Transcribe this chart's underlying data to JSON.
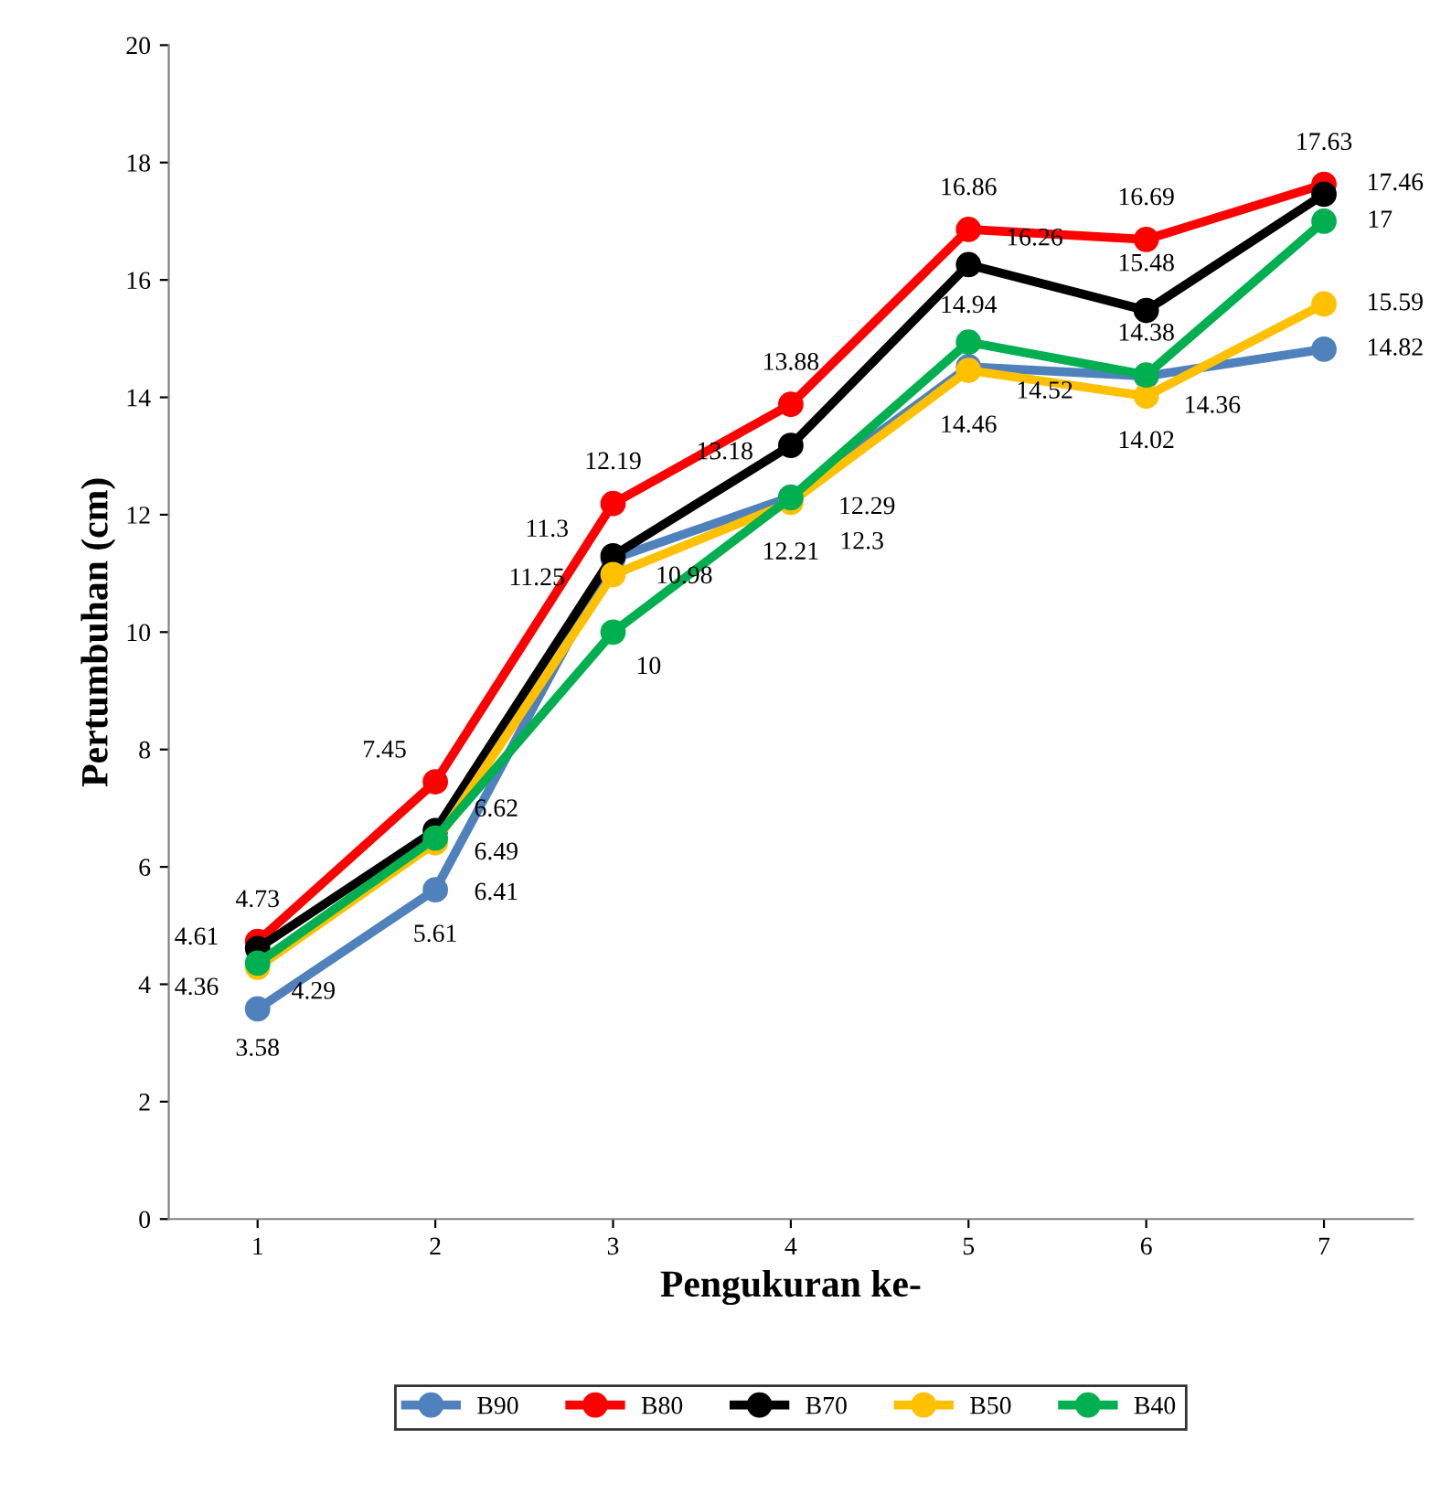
{
  "chart_data": {
    "type": "line",
    "xlabel": "Pengukuran ke-",
    "ylabel": "Pertumbuhan (cm)",
    "categories": [
      "1",
      "2",
      "3",
      "4",
      "5",
      "6",
      "7"
    ],
    "series": [
      {
        "name": "B90",
        "color": "#4f81bd",
        "values": [
          3.58,
          5.61,
          11.25,
          12.3,
          14.52,
          14.36,
          14.82
        ]
      },
      {
        "name": "B80",
        "color": "#ff0000",
        "values": [
          4.73,
          7.45,
          12.19,
          13.88,
          16.86,
          16.69,
          17.63
        ]
      },
      {
        "name": "B70",
        "color": "#000000",
        "values": [
          4.61,
          6.62,
          11.3,
          13.18,
          16.26,
          15.48,
          17.46
        ]
      },
      {
        "name": "B50",
        "color": "#ffc000",
        "values": [
          4.29,
          6.41,
          10.98,
          12.21,
          14.46,
          14.02,
          15.59
        ]
      },
      {
        "name": "B40",
        "color": "#00b050",
        "values": [
          4.36,
          6.49,
          10,
          12.29,
          14.94,
          14.38,
          17
        ]
      }
    ],
    "ylim": [
      0,
      20
    ],
    "yticks": [
      0,
      2,
      4,
      6,
      8,
      10,
      12,
      14,
      16,
      18,
      20
    ],
    "grid": false,
    "legend": "bottom",
    "marker": "circle",
    "line_style": "solid",
    "data_labels": true
  }
}
